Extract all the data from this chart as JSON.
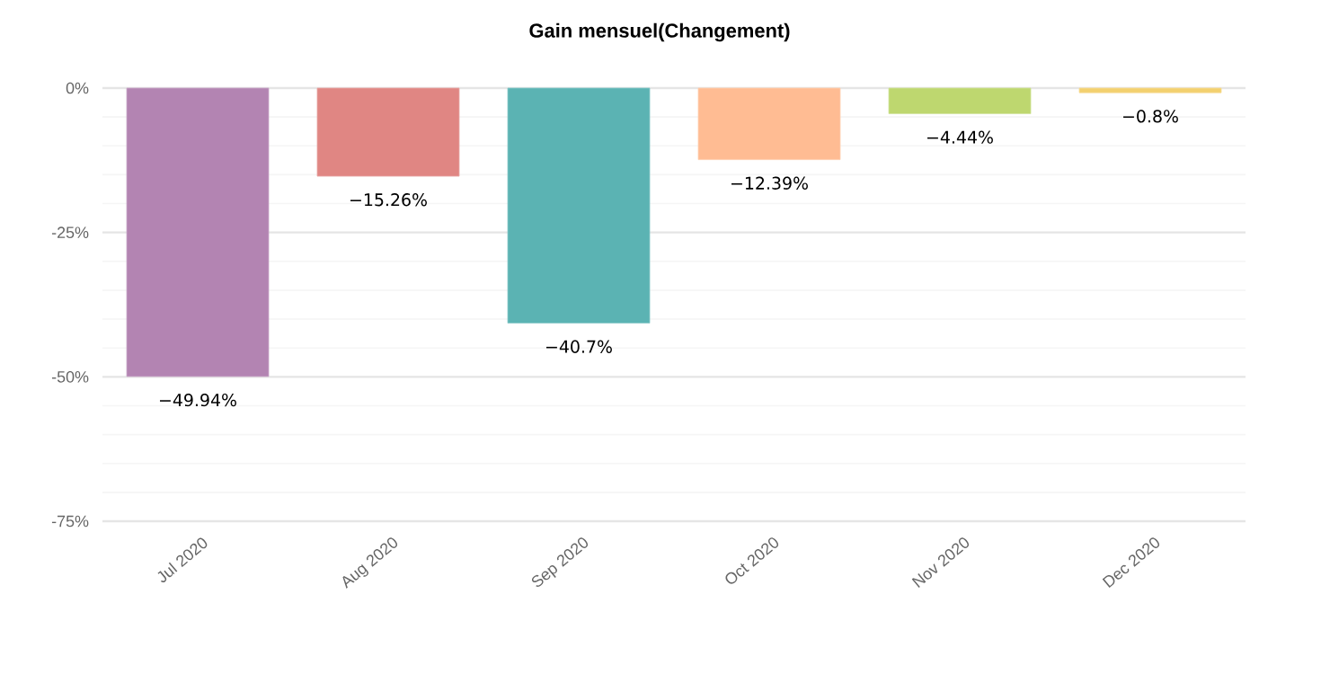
{
  "chart_data": {
    "type": "bar",
    "title": "Gain mensuel(Changement)",
    "categories": [
      "Jul 2020",
      "Aug 2020",
      "Sep 2020",
      "Oct 2020",
      "Nov 2020",
      "Dec 2020"
    ],
    "values": [
      -49.94,
      -15.26,
      -40.7,
      -12.39,
      -4.44,
      -0.8
    ],
    "colors": [
      "#b384b2",
      "#e08683",
      "#5bb3b3",
      "#ffbc93",
      "#bed76f",
      "#f3d06e"
    ],
    "value_labels": [
      "−49.94%",
      "−15.26%",
      "−40.7%",
      "−12.39%",
      "−4.44%",
      "−0.8%"
    ],
    "ylim": [
      -75,
      0
    ],
    "yticks": [
      {
        "value": 0,
        "label": "0%"
      },
      {
        "value": -25,
        "label": "-25%"
      },
      {
        "value": -50,
        "label": "-50%"
      },
      {
        "value": -75,
        "label": "-75%"
      }
    ],
    "grid": "y"
  }
}
